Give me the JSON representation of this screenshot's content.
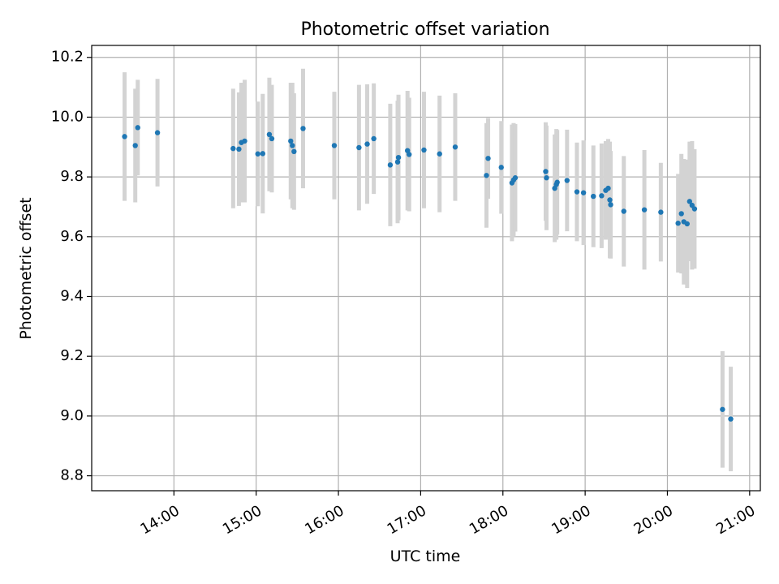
{
  "chart_data": {
    "type": "scatter",
    "title": "Photometric offset variation",
    "xlabel": "UTC time",
    "ylabel": "Photometric offset",
    "x_unit": "UTC hour (decimal)",
    "xlim": [
      13.0,
      21.13
    ],
    "ylim": [
      8.75,
      10.24
    ],
    "grid": true,
    "x_ticks": [
      {
        "value": 14,
        "label": "14:00"
      },
      {
        "value": 15,
        "label": "15:00"
      },
      {
        "value": 16,
        "label": "16:00"
      },
      {
        "value": 17,
        "label": "17:00"
      },
      {
        "value": 18,
        "label": "18:00"
      },
      {
        "value": 19,
        "label": "19:00"
      },
      {
        "value": 20,
        "label": "20:00"
      },
      {
        "value": 21,
        "label": "21:00"
      }
    ],
    "y_ticks": [
      {
        "value": 8.8,
        "label": "8.8"
      },
      {
        "value": 9.0,
        "label": "9.0"
      },
      {
        "value": 9.2,
        "label": "9.2"
      },
      {
        "value": 9.4,
        "label": "9.4"
      },
      {
        "value": 9.6,
        "label": "9.6"
      },
      {
        "value": 9.8,
        "label": "9.8"
      },
      {
        "value": 10.0,
        "label": "10.0"
      },
      {
        "value": 10.2,
        "label": "10.2"
      }
    ],
    "point_color": "#1f77b4",
    "errorbar_color": "#d3d3d3",
    "series": [
      {
        "x": [
          13.4,
          13.53,
          13.56,
          13.8,
          14.72,
          14.79,
          14.82,
          14.86,
          15.02,
          15.08,
          15.16,
          15.19,
          15.42,
          15.44,
          15.46,
          15.57,
          15.95,
          16.25,
          16.35,
          16.43,
          16.63,
          16.72,
          16.73,
          16.84,
          16.86,
          17.04,
          17.23,
          17.42,
          17.8,
          17.82,
          17.98,
          18.11,
          18.13,
          18.15,
          18.52,
          18.53,
          18.63,
          18.65,
          18.66,
          18.78,
          18.9,
          18.98,
          19.1,
          19.2,
          19.25,
          19.28,
          19.3,
          19.31,
          19.47,
          19.72,
          19.92,
          20.13,
          20.17,
          20.2,
          20.24,
          20.27,
          20.3,
          20.33,
          20.67,
          20.77
        ],
        "y": [
          9.935,
          9.905,
          9.965,
          9.948,
          9.895,
          9.893,
          9.915,
          9.92,
          9.877,
          9.878,
          9.942,
          9.928,
          9.92,
          9.905,
          9.885,
          9.962,
          9.905,
          9.898,
          9.91,
          9.928,
          9.84,
          9.85,
          9.865,
          9.888,
          9.875,
          9.89,
          9.877,
          9.9,
          9.805,
          9.862,
          9.832,
          9.78,
          9.79,
          9.797,
          9.818,
          9.797,
          9.762,
          9.775,
          9.782,
          9.788,
          9.75,
          9.747,
          9.735,
          9.737,
          9.755,
          9.762,
          9.723,
          9.707,
          9.685,
          9.69,
          9.682,
          9.645,
          9.677,
          9.65,
          9.643,
          9.718,
          9.705,
          9.693,
          9.022,
          8.99
        ],
        "yerr": [
          0.215,
          0.19,
          0.16,
          0.18,
          0.2,
          0.19,
          0.2,
          0.205,
          0.175,
          0.2,
          0.19,
          0.18,
          0.195,
          0.21,
          0.195,
          0.2,
          0.18,
          0.21,
          0.2,
          0.185,
          0.205,
          0.205,
          0.21,
          0.2,
          0.19,
          0.195,
          0.195,
          0.18,
          0.175,
          0.135,
          0.155,
          0.195,
          0.19,
          0.18,
          0.165,
          0.175,
          0.18,
          0.185,
          0.175,
          0.17,
          0.165,
          0.175,
          0.17,
          0.175,
          0.165,
          0.165,
          0.195,
          0.18,
          0.185,
          0.2,
          0.165,
          0.165,
          0.2,
          0.21,
          0.215,
          0.2,
          0.215,
          0.2,
          0.195,
          0.175
        ]
      }
    ]
  }
}
